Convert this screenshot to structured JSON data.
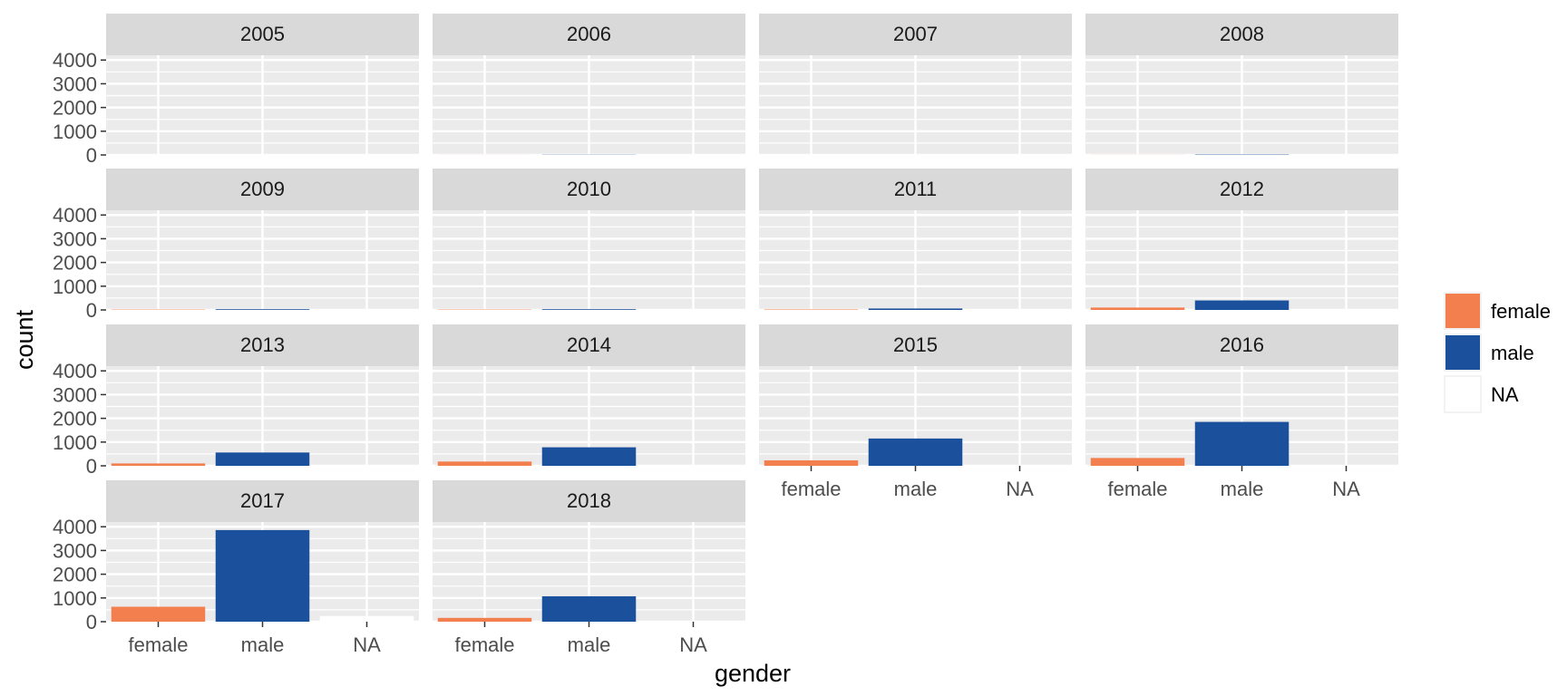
{
  "chart_data": {
    "type": "bar",
    "facet_by": "year",
    "categories": [
      "female",
      "male",
      "NA"
    ],
    "xlabel": "gender",
    "ylabel": "count",
    "ylim": [
      0,
      4200
    ],
    "y_ticks": [
      0,
      1000,
      2000,
      3000,
      4000
    ],
    "grid": true,
    "legend": {
      "position": "right",
      "entries": [
        "female",
        "male",
        "NA"
      ]
    },
    "colors": {
      "female": "#F47F4E",
      "male": "#1A509C",
      "NA": "#FFFFFF",
      "panel_bg": "#EBEBEB",
      "strip_bg": "#D9D9D9",
      "grid": "#FFFFFF"
    },
    "facets": [
      {
        "label": "2005",
        "values": [
          0,
          0,
          0
        ]
      },
      {
        "label": "2006",
        "values": [
          2,
          8,
          0
        ]
      },
      {
        "label": "2007",
        "values": [
          0,
          0,
          0
        ]
      },
      {
        "label": "2008",
        "values": [
          3,
          15,
          0
        ]
      },
      {
        "label": "2009",
        "values": [
          15,
          30,
          0
        ]
      },
      {
        "label": "2010",
        "values": [
          15,
          30,
          0
        ]
      },
      {
        "label": "2011",
        "values": [
          20,
          60,
          0
        ]
      },
      {
        "label": "2012",
        "values": [
          100,
          400,
          0
        ]
      },
      {
        "label": "2013",
        "values": [
          100,
          560,
          0
        ]
      },
      {
        "label": "2014",
        "values": [
          180,
          780,
          0
        ]
      },
      {
        "label": "2015",
        "values": [
          230,
          1150,
          0
        ]
      },
      {
        "label": "2016",
        "values": [
          330,
          1850,
          0
        ]
      },
      {
        "label": "2017",
        "values": [
          630,
          3860,
          240
        ]
      },
      {
        "label": "2018",
        "values": [
          160,
          1070,
          20
        ]
      }
    ]
  }
}
